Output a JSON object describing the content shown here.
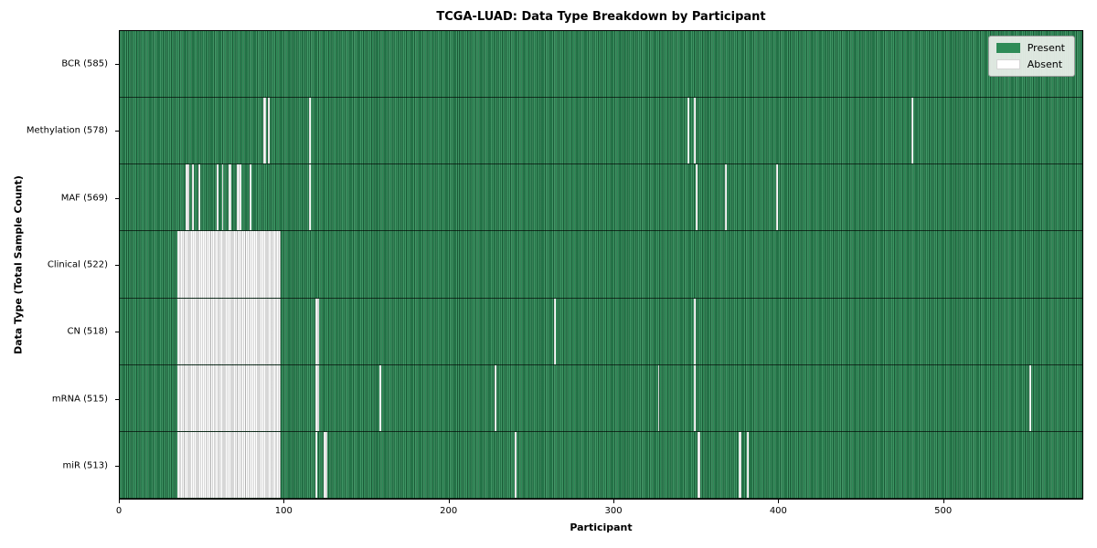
{
  "chart_data": {
    "type": "heatmap",
    "title": "TCGA-LUAD: Data Type Breakdown by Participant",
    "xlabel": "Participant",
    "ylabel": "Data Type (Total Sample Count)",
    "n_participants": 585,
    "x_ticks": [
      0,
      100,
      200,
      300,
      400,
      500
    ],
    "xlim": [
      0,
      585
    ],
    "grid": false,
    "legend_position": "upper right",
    "colors": {
      "present": "#2e8b57",
      "absent": "#ffffff"
    },
    "legend": {
      "present_label": "Present",
      "absent_label": "Absent"
    },
    "rows": [
      {
        "name": "BCR",
        "label": "BCR (585)",
        "count": 585,
        "absent_ranges": []
      },
      {
        "name": "Methylation",
        "label": "Methylation (578)",
        "count": 578,
        "absent_ranges": [
          [
            87,
            88
          ],
          [
            90,
            90
          ],
          [
            115,
            115
          ],
          [
            345,
            345
          ],
          [
            349,
            349
          ],
          [
            481,
            481
          ]
        ]
      },
      {
        "name": "MAF",
        "label": "MAF (569)",
        "count": 569,
        "absent_ranges": [
          [
            40,
            41
          ],
          [
            44,
            44
          ],
          [
            48,
            48
          ],
          [
            59,
            59
          ],
          [
            62,
            62
          ],
          [
            66,
            67
          ],
          [
            71,
            73
          ],
          [
            79,
            79
          ],
          [
            115,
            115
          ],
          [
            350,
            350
          ],
          [
            368,
            368
          ],
          [
            399,
            399
          ]
        ]
      },
      {
        "name": "Clinical",
        "label": "Clinical (522)",
        "count": 522,
        "absent_ranges": [
          [
            35,
            97
          ]
        ]
      },
      {
        "name": "CN",
        "label": "CN (518)",
        "count": 518,
        "absent_ranges": [
          [
            35,
            97
          ],
          [
            119,
            120
          ],
          [
            264,
            264
          ],
          [
            349,
            349
          ]
        ]
      },
      {
        "name": "mRNA",
        "label": "mRNA (515)",
        "count": 515,
        "absent_ranges": [
          [
            35,
            97
          ],
          [
            119,
            120
          ],
          [
            158,
            158
          ],
          [
            228,
            228
          ],
          [
            327,
            327
          ],
          [
            349,
            349
          ],
          [
            553,
            553
          ]
        ]
      },
      {
        "name": "miR",
        "label": "miR (513)",
        "count": 513,
        "absent_ranges": [
          [
            35,
            97
          ],
          [
            119,
            119
          ],
          [
            124,
            125
          ],
          [
            240,
            240
          ],
          [
            351,
            352
          ],
          [
            376,
            377
          ],
          [
            381,
            381
          ]
        ]
      }
    ]
  }
}
